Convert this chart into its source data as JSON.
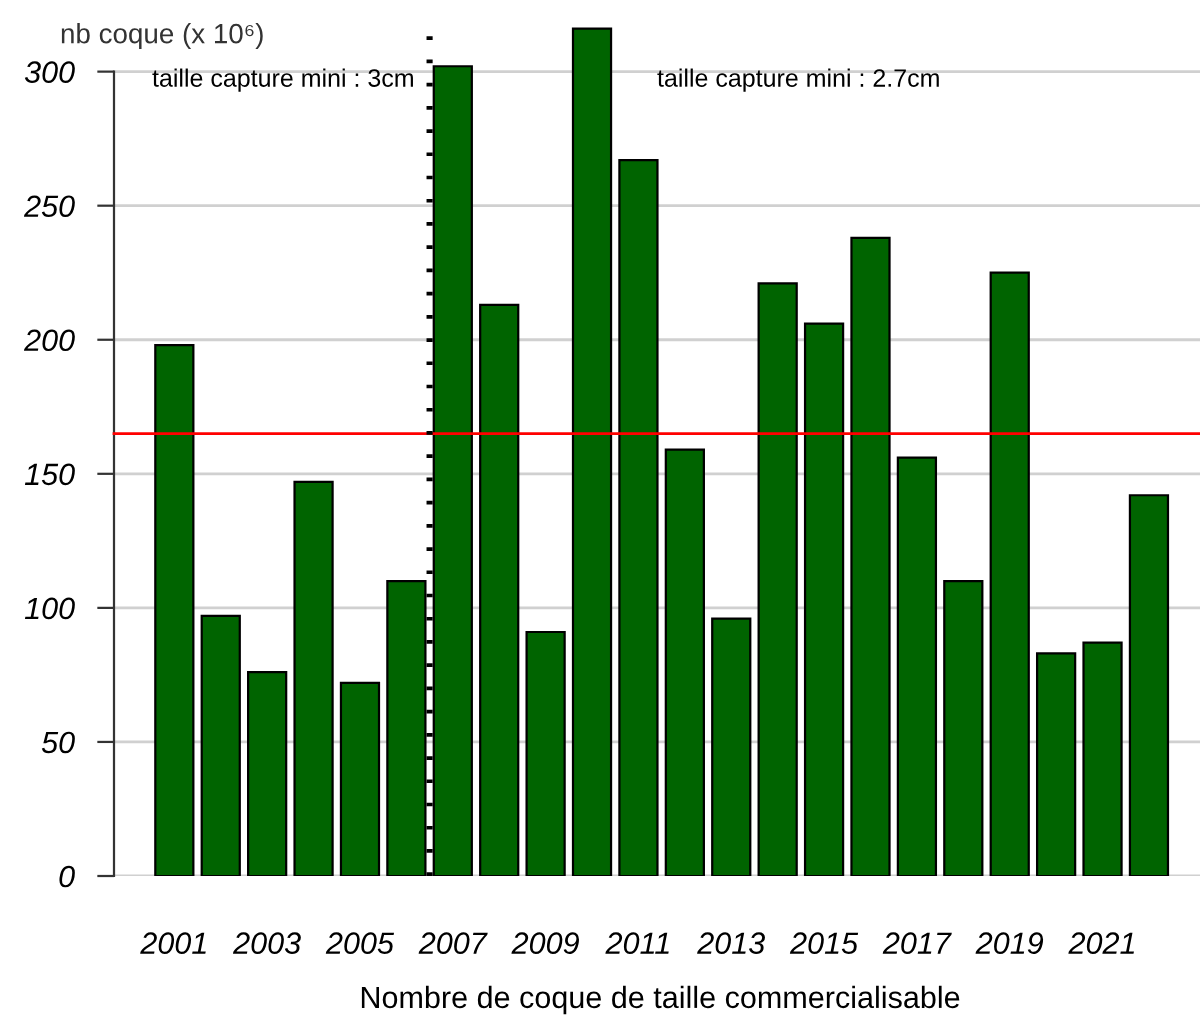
{
  "chart_data": {
    "type": "bar",
    "xlabel": "Nombre de coque de taille commercialisable",
    "ylabel": "nb coque (x 10⁶)",
    "x": [
      2001,
      2002,
      2003,
      2004,
      2005,
      2006,
      2007,
      2008,
      2009,
      2010,
      2011,
      2012,
      2013,
      2014,
      2015,
      2016,
      2017,
      2018,
      2019,
      2020,
      2021,
      2022
    ],
    "values": [
      198,
      97,
      76,
      147,
      72,
      110,
      302,
      213,
      91,
      316,
      267,
      159,
      96,
      221,
      206,
      238,
      156,
      110,
      225,
      83,
      87,
      142
    ],
    "color": "#006400",
    "xlim": [
      1999.7,
      2023.1
    ],
    "xticks": [
      2001,
      2003,
      2005,
      2007,
      2009,
      2011,
      2013,
      2015,
      2017,
      2019,
      2021
    ],
    "ylim": [
      0,
      320
    ],
    "yticks": [
      0,
      50,
      100,
      150,
      200,
      250,
      300
    ],
    "grid": "y",
    "ref_lines": [
      {
        "axis": "y",
        "value": 165,
        "color": "#ff0000",
        "line_style": "solid"
      },
      {
        "axis": "x",
        "value": 2006.5,
        "color": "#000000",
        "line_style": "dotted"
      }
    ],
    "annotations": [
      "taille capture mini : 3cm",
      "taille capture mini : 2.7cm"
    ]
  }
}
